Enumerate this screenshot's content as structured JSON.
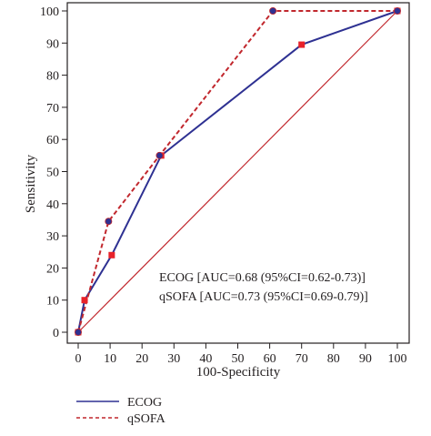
{
  "chart_data": {
    "type": "line",
    "title": "",
    "xlabel": "100-Specificity",
    "ylabel": "Sensitivity",
    "xlim": [
      0,
      100
    ],
    "ylim": [
      0,
      100
    ],
    "xticks": [
      "0",
      "10",
      "20",
      "30",
      "40",
      "50",
      "60",
      "70",
      "80",
      "90",
      "100"
    ],
    "yticks": [
      "0",
      "10",
      "20",
      "30",
      "40",
      "50",
      "60",
      "70",
      "80",
      "90",
      "100"
    ],
    "grid": false,
    "legend_position": "bottom-left",
    "series": [
      {
        "name": "ECOG",
        "color": "#2e3192",
        "line_style": "solid",
        "marker_color": "#e8222a",
        "marker": "square",
        "points": [
          {
            "x": 0,
            "y": 0
          },
          {
            "x": 2,
            "y": 10
          },
          {
            "x": 10.5,
            "y": 24
          },
          {
            "x": 26,
            "y": 55
          },
          {
            "x": 70,
            "y": 89.5
          },
          {
            "x": 100,
            "y": 100
          }
        ]
      },
      {
        "name": "qSOFA",
        "color": "#c1272d",
        "line_style": "dashed",
        "marker_color": "#2e3192",
        "marker": "circle",
        "points": [
          {
            "x": 0,
            "y": 0
          },
          {
            "x": 9.5,
            "y": 34.5
          },
          {
            "x": 25.5,
            "y": 55
          },
          {
            "x": 61,
            "y": 100
          },
          {
            "x": 100,
            "y": 100
          }
        ]
      }
    ],
    "reference_line": {
      "color": "#c1272d",
      "points": [
        {
          "x": 0,
          "y": 0
        },
        {
          "x": 100,
          "y": 100
        }
      ]
    },
    "annotations": [
      "ECOG [AUC=0.68 (95%CI=0.62-0.73)]",
      "qSOFA [AUC=0.73 (95%CI=0.69-0.79)]"
    ]
  }
}
